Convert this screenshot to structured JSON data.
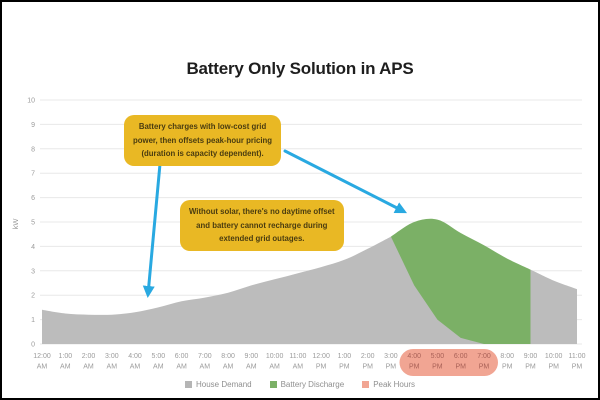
{
  "chart_data": {
    "type": "area",
    "stacked": true,
    "title": "Battery Only Solution in APS",
    "xlabel": "",
    "ylabel": "kW",
    "ylim": [
      0,
      10
    ],
    "grid": true,
    "legend_position": "bottom",
    "categories": [
      "12:00 AM",
      "1:00 AM",
      "2:00 AM",
      "3:00 AM",
      "4:00 AM",
      "5:00 AM",
      "6:00 AM",
      "7:00 AM",
      "8:00 AM",
      "9:00 AM",
      "10:00 AM",
      "11:00 AM",
      "12:00 PM",
      "1:00 PM",
      "2:00 PM",
      "3:00 PM",
      "4:00 PM",
      "5:00 PM",
      "6:00 PM",
      "7:00 PM",
      "8:00 PM",
      "9:00 PM",
      "10:00 PM",
      "11:00 PM"
    ],
    "series": [
      {
        "name": "House Demand",
        "color": "#bcbcbc",
        "values": [
          1.4,
          1.25,
          1.2,
          1.2,
          1.3,
          1.5,
          1.75,
          1.9,
          2.1,
          2.4,
          2.65,
          2.9,
          3.15,
          3.45,
          3.9,
          4.4,
          2.4,
          1.0,
          0.25,
          0,
          0,
          3.05,
          2.6,
          2.25
        ]
      },
      {
        "name": "Battery Discharge",
        "color": "#7bb066",
        "values": [
          0,
          0,
          0,
          0,
          0,
          0,
          0,
          0,
          0,
          0,
          0,
          0,
          0,
          0,
          0,
          0,
          2.6,
          4.1,
          4.3,
          4.05,
          3.5,
          0,
          0,
          0
        ]
      }
    ],
    "discharge_window": "3:00 PM – 9:00 PM",
    "peak_hours": [
      "4:00 PM",
      "5:00 PM",
      "6:00 PM",
      "7:00 PM"
    ],
    "peak_band_color": "#f1a593",
    "peak_label_color": "#a96157",
    "axis_label_color": "#9b9b9b",
    "grid_color": "#e8e8e8",
    "legend": [
      {
        "label": "House Demand",
        "color": "#b5b5b5"
      },
      {
        "label": "Battery Discharge",
        "color": "#7bb066"
      },
      {
        "label": "Peak Hours",
        "color": "#f1a593"
      }
    ],
    "annotations": [
      {
        "lines": [
          "Battery charges with low-cost grid",
          "power, then offsets peak-hour pricing",
          "(duration is capacity dependent)."
        ]
      },
      {
        "lines": [
          "Without solar, there's no daytime offset",
          "and battery cannot recharge during",
          "extended grid outages."
        ]
      }
    ],
    "annotation_style": {
      "bubble_color": "#e9b824",
      "text_color": "#4a3c10",
      "arrow_color": "#29a9e1"
    }
  }
}
